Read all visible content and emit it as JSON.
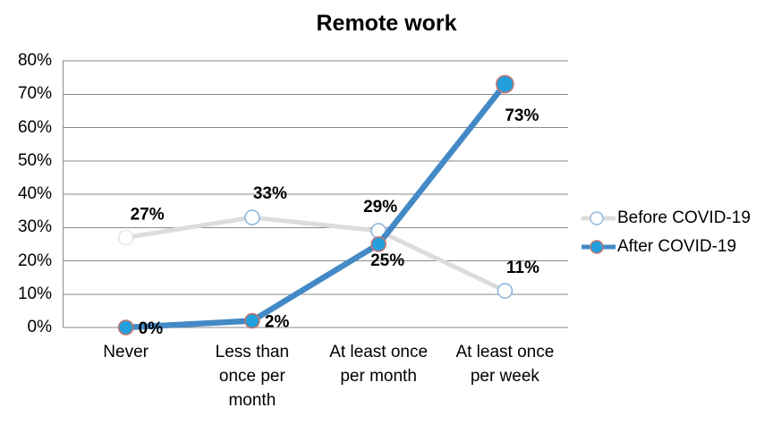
{
  "chart_data": {
    "type": "line",
    "title": "Remote work",
    "categories": [
      "Never",
      "Less than\nonce per\nmonth",
      "At least once\nper month",
      "At least once\nper week"
    ],
    "series": [
      {
        "name": "Before COVID-19",
        "values": [
          27,
          33,
          29,
          11
        ],
        "point_labels": [
          "27%",
          "33%",
          "29%",
          "11%"
        ],
        "line_color": "#DCDCDC",
        "marker_fill": "#FFFFFF",
        "marker_stroke": "#8FB7DE",
        "marker_stroke_overrides": {
          "0": "#E2E6EB"
        }
      },
      {
        "name": "After COVID-19",
        "values": [
          0,
          2,
          25,
          73
        ],
        "point_labels": [
          "0%",
          "2%",
          "25%",
          "73%"
        ],
        "line_color": "#4389C6",
        "marker_fill": "#23A0DC",
        "marker_stroke": "#C4746C"
      }
    ],
    "y_ticks": [
      "0%",
      "10%",
      "20%",
      "30%",
      "40%",
      "50%",
      "60%",
      "70%",
      "80%"
    ],
    "ylim": [
      0,
      80
    ],
    "grid": "horizontal",
    "gridline_color": "#8A8A8A",
    "axis_color": "#8A8A8A",
    "legend_position": "right"
  }
}
